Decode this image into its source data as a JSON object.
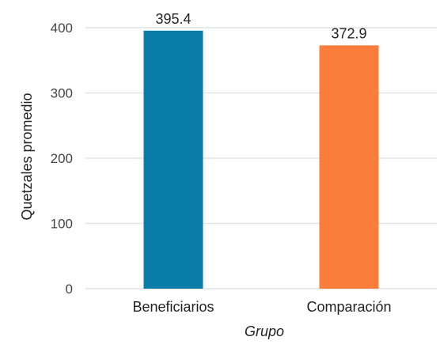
{
  "chart_data": {
    "type": "bar",
    "categories": [
      "Beneficiarios",
      "Comparación"
    ],
    "values": [
      395.4,
      372.9
    ],
    "value_labels": [
      "395.4",
      "372.9"
    ],
    "colors": [
      "#0a7ca8",
      "#fb7d3c"
    ],
    "title": "",
    "xlabel": "Grupo",
    "ylabel": "Quetzales promedio",
    "ylim": [
      0,
      400
    ],
    "yticks": [
      0,
      100,
      200,
      300,
      400
    ],
    "grid": true,
    "legend": "none"
  }
}
